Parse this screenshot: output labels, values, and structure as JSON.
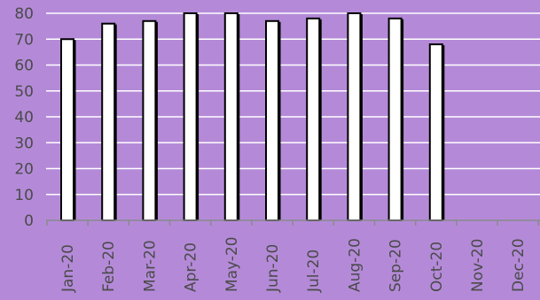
{
  "chart_data": {
    "type": "bar",
    "title": "",
    "xlabel": "",
    "ylabel": "",
    "categories": [
      "Jan-20",
      "Feb-20",
      "Mar-20",
      "Apr-20",
      "May-20",
      "Jun-20",
      "Jul-20",
      "Aug-20",
      "Sep-20",
      "Oct-20",
      "Nov-20",
      "Dec-20"
    ],
    "values": [
      70,
      76,
      77,
      80,
      80,
      77,
      78,
      80,
      78,
      68,
      null,
      null
    ],
    "ylim": [
      0,
      80
    ],
    "yticks": [
      "0",
      "10",
      "20",
      "30",
      "40",
      "50",
      "60",
      "70",
      "80"
    ],
    "grid": true,
    "legend": "none",
    "colors": {
      "background": "#b48ad8",
      "bar_fill": "#ffffff",
      "bar_stroke": "#000000",
      "gridline": "#ffffff",
      "text": "#4a4a4a"
    }
  }
}
